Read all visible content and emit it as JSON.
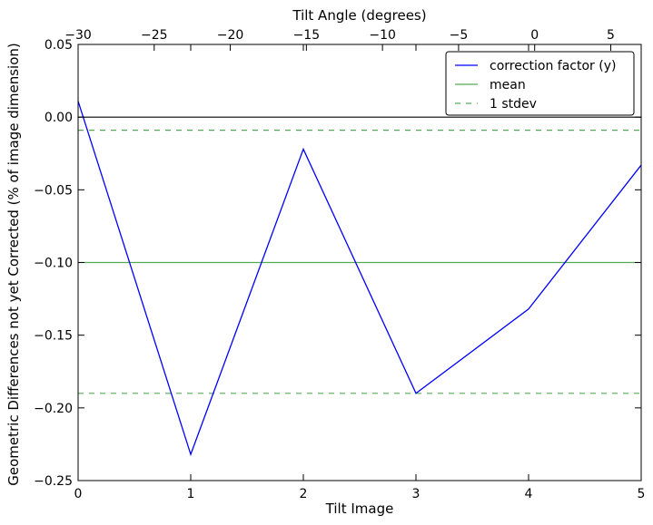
{
  "chart_data": {
    "type": "line",
    "xlabel": "Tilt Image",
    "ylabel": "Geometric Differences not yet Corrected (% of image dimension)",
    "x2label": "Tilt Angle (degrees)",
    "xlim": [
      0,
      5
    ],
    "ylim": [
      -0.25,
      0.05
    ],
    "x2lim": [
      -30,
      7
    ],
    "x_ticks": [
      0,
      1,
      2,
      3,
      4,
      5
    ],
    "x_tick_labels": [
      "0",
      "1",
      "2",
      "3",
      "4",
      "5"
    ],
    "y_ticks": [
      0.05,
      0.0,
      -0.05,
      -0.1,
      -0.15,
      -0.2,
      -0.25
    ],
    "y_tick_labels": [
      "0.05",
      "0.00",
      "−0.05",
      "−0.10",
      "−0.15",
      "−0.20",
      "−0.25"
    ],
    "x2_ticks": [
      -30,
      -25,
      -20,
      -15,
      -10,
      -5,
      0,
      5
    ],
    "x2_tick_labels": [
      "−30",
      "−25",
      "−20",
      "−15",
      "−10",
      "−5",
      "0",
      "5"
    ],
    "grid": false,
    "legend_position": "top-right",
    "series": [
      {
        "name": "correction factor (y)",
        "color": "#0000ff",
        "style": "solid",
        "x": [
          0,
          1,
          2,
          3,
          4,
          5
        ],
        "y": [
          0.011,
          -0.232,
          -0.022,
          -0.19,
          -0.132,
          -0.033
        ]
      }
    ],
    "reference_lines": [
      {
        "name": "mean",
        "color": "#55aa55",
        "style": "solid",
        "y": -0.1
      },
      {
        "name": "1 stdev",
        "color": "#55aa55",
        "style": "dashed",
        "y": -0.009
      },
      {
        "name": "",
        "color": "#55aa55",
        "style": "dashed",
        "y": -0.19
      },
      {
        "name": "",
        "color": "#000000",
        "style": "solid",
        "y": 0.0
      }
    ],
    "legend": [
      {
        "label": "correction factor (y)",
        "color": "#0000ff",
        "style": "solid"
      },
      {
        "label": "mean",
        "color": "#55aa55",
        "style": "solid"
      },
      {
        "label": "1 stdev",
        "color": "#55aa55",
        "style": "dashed"
      }
    ]
  }
}
